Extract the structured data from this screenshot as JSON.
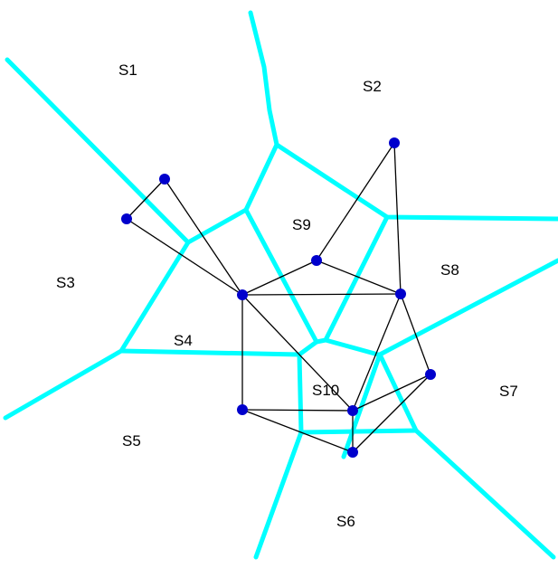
{
  "diagram": {
    "colors": {
      "background": "#ffffff",
      "cell_boundary": "#00ffff",
      "graph_edge": "#000000",
      "site": "#0000cc"
    },
    "region_labels": {
      "s1": "S1",
      "s2": "S2",
      "s3": "S3",
      "s4": "S4",
      "s5": "S5",
      "s6": "S6",
      "s7": "S7",
      "s8": "S8",
      "s9": "S9",
      "s10": "S10"
    }
  }
}
